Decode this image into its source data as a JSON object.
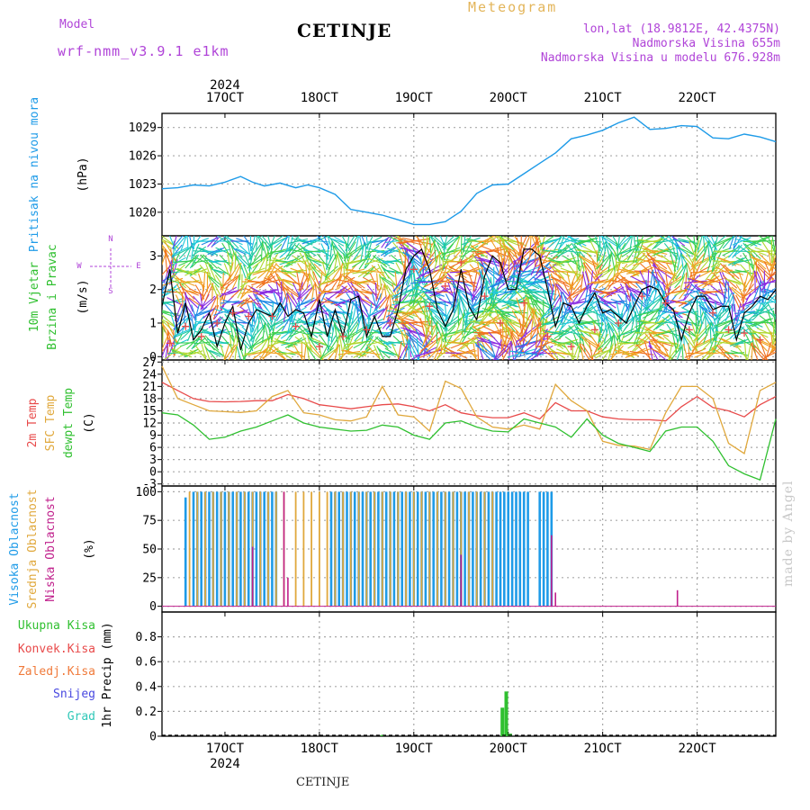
{
  "header": {
    "model_label": "Model",
    "model_name": "wrf-nmm_v3.9.1  e1km",
    "station": "CETINJE",
    "meteogram_label": "Meteogram",
    "lonlat": "lon,lat (18.9812E, 42.4375N)",
    "altitude": "Nadmorska Visina 655m",
    "model_altitude": "Nadmorska Visina u modelu 676.928m"
  },
  "footer": {
    "station": "CETINJE",
    "watermark": "made by Angel"
  },
  "colors": {
    "pressure": "#1e9be8",
    "temp2m": "#e84a4a",
    "sfc": "#e0a83c",
    "dewpt": "#30c030",
    "high_cloud": "#1e9be8",
    "mid_cloud": "#e0a83c",
    "low_cloud": "#c0208c",
    "precip_total": "#30c030",
    "label_purple": "#b044d8",
    "grid": "#a8a8a8"
  },
  "chart_data": {
    "type": "line",
    "x_ticks": [
      "17OCT",
      "18OCT",
      "19OCT",
      "20OCT",
      "21OCT",
      "22OCT"
    ],
    "x_year": "2024",
    "x_range_hours": [
      -16,
      140
    ],
    "panels": {
      "pressure": {
        "labels": [
          "Pritisak na nivou mora",
          "(hPa)"
        ],
        "y_ticks": [
          1020,
          1023,
          1026,
          1029
        ],
        "ylim": [
          1017.5,
          1030.5
        ],
        "x": [
          -16,
          -12,
          -8,
          -4,
          0,
          4,
          7,
          10,
          14,
          18,
          21,
          24,
          28,
          32,
          36,
          40,
          44,
          48,
          52,
          56,
          60,
          64,
          68,
          72,
          76,
          80,
          84,
          88,
          92,
          96,
          100,
          104,
          108,
          112,
          116,
          120,
          124,
          128,
          132,
          136,
          140
        ],
        "values": [
          1022.5,
          1022.6,
          1022.9,
          1022.8,
          1023.2,
          1023.8,
          1023.2,
          1022.8,
          1023.1,
          1022.6,
          1022.9,
          1022.6,
          1021.9,
          1020.3,
          1020.0,
          1019.7,
          1019.2,
          1018.7,
          1018.7,
          1019.0,
          1020.1,
          1022.0,
          1022.9,
          1023.0,
          1024.1,
          1025.2,
          1026.3,
          1027.8,
          1028.2,
          1028.7,
          1029.5,
          1030.1,
          1028.8,
          1028.9,
          1029.2,
          1029.1,
          1027.9,
          1027.8,
          1028.3,
          1028.0,
          1027.5
        ]
      },
      "wind": {
        "labels": [
          "10m Vjetar",
          "Brzina i Pravac",
          "(m/s)"
        ],
        "compass": [
          "N",
          "E",
          "W",
          "S"
        ],
        "y_ticks": [
          0,
          1,
          2,
          3
        ],
        "ylim": [
          -0.1,
          3.6
        ],
        "x": [
          -16,
          -14,
          -12,
          -10,
          -8,
          -6,
          -4,
          -2,
          0,
          2,
          4,
          6,
          8,
          10,
          12,
          14,
          16,
          18,
          20,
          22,
          24,
          26,
          28,
          30,
          32,
          34,
          36,
          38,
          40,
          42,
          44,
          46,
          48,
          50,
          52,
          54,
          56,
          58,
          60,
          62,
          64,
          66,
          68,
          70,
          72,
          74,
          76,
          78,
          80,
          82,
          84,
          86,
          88,
          90,
          92,
          94,
          96,
          98,
          100,
          102,
          104,
          106,
          108,
          110,
          112,
          114,
          116,
          118,
          120,
          122,
          124,
          126,
          128,
          130,
          132,
          134,
          136,
          138,
          140
        ],
        "values": [
          1.5,
          2.6,
          0.7,
          1.6,
          0.5,
          0.8,
          1.3,
          0.3,
          1.0,
          1.5,
          0.2,
          1.0,
          1.4,
          1.3,
          1.2,
          1.6,
          1.2,
          1.4,
          1.3,
          0.6,
          1.7,
          0.6,
          1.4,
          0.6,
          1.7,
          1.8,
          0.6,
          1.2,
          0.6,
          0.6,
          1.4,
          2.6,
          3.0,
          3.2,
          2.6,
          1.4,
          0.9,
          1.4,
          2.6,
          1.5,
          1.1,
          2.4,
          3.0,
          2.8,
          2.0,
          2.0,
          3.2,
          3.2,
          3.0,
          2.0,
          0.9,
          1.6,
          1.5,
          1.0,
          1.5,
          1.9,
          1.3,
          1.4,
          1.2,
          1.0,
          1.5,
          2.0,
          2.1,
          2.0,
          1.6,
          1.4,
          0.5,
          1.3,
          1.8,
          1.8,
          1.4,
          1.5,
          1.5,
          0.5,
          1.3,
          1.5,
          1.8,
          1.7,
          2.0
        ],
        "gust_x": [
          -14,
          -10,
          -6,
          -2,
          2,
          6,
          12,
          18,
          24,
          30,
          36,
          42,
          48,
          52,
          56,
          60,
          66,
          70,
          76,
          82,
          88,
          94,
          100,
          106,
          112,
          118,
          124,
          128,
          132,
          136
        ],
        "gust_values": [
          0.4,
          0.9,
          0.6,
          1.0,
          1.3,
          1.2,
          1.2,
          0.9,
          0.3,
          0.6,
          0.8,
          1.0,
          2.6,
          1.5,
          2.1,
          2.8,
          1.8,
          1.0,
          1.6,
          0.6,
          0.3,
          0.8,
          1.0,
          1.8,
          1.6,
          0.8,
          1.3,
          0.8,
          0.7,
          0.5
        ]
      },
      "temp": {
        "labels": [
          "2m Temp",
          "SFC Temp",
          "dewpt Temp",
          "(C)"
        ],
        "y_ticks": [
          -3,
          0,
          3,
          6,
          9,
          12,
          15,
          18,
          21,
          24,
          27
        ],
        "ylim": [
          -3.5,
          27.5
        ],
        "x": [
          -16,
          -12,
          -8,
          -4,
          0,
          4,
          8,
          12,
          16,
          20,
          24,
          28,
          32,
          36,
          40,
          44,
          48,
          52,
          56,
          60,
          64,
          68,
          72,
          76,
          80,
          84,
          88,
          92,
          96,
          100,
          104,
          108,
          112,
          116,
          120,
          124,
          128,
          132,
          136,
          140
        ],
        "series": [
          {
            "name": "2m Temp",
            "values": [
              22.0,
              20.0,
              18.0,
              17.3,
              17.2,
              17.3,
              17.5,
              17.5,
              19.0,
              18.0,
              16.5,
              16.0,
              15.5,
              16.0,
              16.5,
              16.7,
              16.0,
              15.0,
              16.5,
              14.5,
              13.8,
              13.3,
              13.3,
              14.5,
              13.0,
              17.0,
              15.0,
              15.0,
              13.5,
              13.0,
              12.8,
              12.8,
              12.5,
              16.0,
              18.5,
              15.8,
              15.0,
              13.5,
              16.5,
              18.5
            ]
          },
          {
            "name": "SFC Temp",
            "values": [
              26.0,
              18.0,
              16.5,
              15.0,
              14.8,
              14.6,
              15.0,
              18.5,
              20.0,
              14.5,
              14.0,
              12.8,
              12.5,
              13.5,
              21.0,
              14.0,
              13.5,
              10.0,
              22.3,
              20.5,
              13.5,
              11.0,
              10.5,
              11.5,
              10.5,
              21.5,
              17.5,
              15.0,
              7.5,
              6.5,
              6.3,
              5.5,
              14.5,
              21.0,
              21.0,
              18.0,
              7.0,
              4.5,
              20.0,
              22.0
            ]
          },
          {
            "name": "dewpt Temp",
            "values": [
              14.5,
              14.0,
              11.5,
              8.0,
              8.5,
              10.0,
              11.0,
              12.5,
              14.0,
              12.0,
              11.0,
              10.5,
              10.0,
              10.2,
              11.5,
              11.0,
              9.0,
              8.0,
              12.0,
              12.5,
              11.0,
              10.0,
              9.8,
              13.0,
              12.0,
              11.0,
              8.5,
              13.0,
              9.0,
              7.0,
              6.0,
              5.0,
              10.0,
              11.0,
              11.0,
              7.5,
              1.5,
              -0.5,
              -2.0,
              13.0
            ]
          }
        ]
      },
      "cloud": {
        "labels": [
          "Visoka Oblacnost",
          "Srednja Oblacnost",
          "Niska Oblacnost",
          "(%)"
        ],
        "y_ticks": [
          0,
          25,
          50,
          75,
          100
        ],
        "ylim": [
          -5,
          105
        ],
        "high_bars": [
          [
            -10,
            95
          ],
          [
            -8,
            100
          ],
          [
            -7,
            100
          ],
          [
            -6,
            100
          ],
          [
            -5,
            100
          ],
          [
            -4,
            100
          ],
          [
            -3,
            100
          ],
          [
            -2,
            100
          ],
          [
            -1,
            100
          ],
          [
            0,
            100
          ],
          [
            1,
            100
          ],
          [
            2,
            100
          ],
          [
            3,
            100
          ],
          [
            4,
            100
          ],
          [
            5,
            100
          ],
          [
            6,
            100
          ],
          [
            7,
            100
          ],
          [
            8,
            100
          ],
          [
            9,
            100
          ],
          [
            10,
            100
          ],
          [
            11,
            100
          ],
          [
            12,
            100
          ],
          [
            13,
            100
          ],
          [
            27,
            100
          ],
          [
            28,
            100
          ],
          [
            29,
            100
          ],
          [
            30,
            100
          ],
          [
            31,
            100
          ],
          [
            32,
            100
          ],
          [
            33,
            100
          ],
          [
            34,
            100
          ],
          [
            35,
            100
          ],
          [
            36,
            100
          ],
          [
            37,
            100
          ],
          [
            38,
            100
          ],
          [
            39,
            100
          ],
          [
            40,
            100
          ],
          [
            41,
            100
          ],
          [
            42,
            100
          ],
          [
            43,
            100
          ],
          [
            44,
            100
          ],
          [
            45,
            100
          ],
          [
            46,
            100
          ],
          [
            47,
            100
          ],
          [
            48,
            100
          ],
          [
            49,
            100
          ],
          [
            50,
            100
          ],
          [
            51,
            100
          ],
          [
            52,
            100
          ],
          [
            53,
            100
          ],
          [
            54,
            100
          ],
          [
            55,
            100
          ],
          [
            56,
            100
          ],
          [
            57,
            100
          ],
          [
            58,
            100
          ],
          [
            59,
            100
          ],
          [
            60,
            100
          ],
          [
            61,
            100
          ],
          [
            62,
            100
          ],
          [
            63,
            100
          ],
          [
            64,
            100
          ],
          [
            65,
            100
          ],
          [
            66,
            100
          ],
          [
            67,
            100
          ],
          [
            68,
            100
          ],
          [
            69,
            100
          ],
          [
            70,
            100
          ],
          [
            71,
            100
          ],
          [
            72,
            100
          ],
          [
            73,
            100
          ],
          [
            74,
            100
          ],
          [
            75,
            100
          ],
          [
            76,
            100
          ],
          [
            77,
            100
          ],
          [
            80,
            100
          ],
          [
            81,
            100
          ],
          [
            82,
            100
          ],
          [
            83,
            100
          ]
        ],
        "mid_bars": [
          [
            -9,
            100
          ],
          [
            -7,
            100
          ],
          [
            -5,
            100
          ],
          [
            -3,
            100
          ],
          [
            -1,
            100
          ],
          [
            1,
            100
          ],
          [
            3,
            100
          ],
          [
            5,
            100
          ],
          [
            7,
            100
          ],
          [
            9,
            100
          ],
          [
            11,
            100
          ],
          [
            13,
            100
          ],
          [
            15,
            100
          ],
          [
            18,
            100
          ],
          [
            20,
            100
          ],
          [
            22,
            100
          ],
          [
            24,
            100
          ],
          [
            26,
            100
          ],
          [
            28,
            100
          ],
          [
            30,
            100
          ],
          [
            32,
            100
          ],
          [
            34,
            100
          ],
          [
            36,
            100
          ],
          [
            38,
            100
          ],
          [
            40,
            100
          ],
          [
            42,
            100
          ],
          [
            44,
            100
          ],
          [
            46,
            100
          ],
          [
            48,
            100
          ],
          [
            50,
            100
          ],
          [
            52,
            100
          ],
          [
            54,
            100
          ],
          [
            56,
            100
          ],
          [
            58,
            100
          ],
          [
            60,
            100
          ],
          [
            62,
            100
          ],
          [
            64,
            100
          ],
          [
            66,
            100
          ],
          [
            68,
            100
          ]
        ],
        "low_bars": [
          [
            7,
            52
          ],
          [
            15,
            100
          ],
          [
            16,
            25
          ],
          [
            60,
            45
          ],
          [
            83,
            62
          ],
          [
            84,
            12
          ],
          [
            115,
            14
          ]
        ]
      },
      "precip": {
        "labels": [
          "Ukupna Kisa",
          "Konvek.Kisa",
          "Zaledj.Kisa",
          "Snijeg",
          "Grad",
          "1hr Precip (mm)"
        ],
        "label_colors": [
          "#30c030",
          "#e84a4a",
          "#f07a3a",
          "#4848e0",
          "#30c8b8",
          "#000000"
        ],
        "y_ticks": [
          0,
          0.2,
          0.4,
          0.6,
          0.8
        ],
        "y_tick_labels": [
          "0",
          "0.2",
          "0.4",
          "0.6",
          "0.8"
        ],
        "ylim": [
          0,
          1.0
        ],
        "bars": [
          [
            70.5,
            0.23
          ],
          [
            71.5,
            0.36
          ],
          [
            72.5,
            0.02
          ],
          [
            40,
            0.01
          ]
        ]
      }
    }
  }
}
